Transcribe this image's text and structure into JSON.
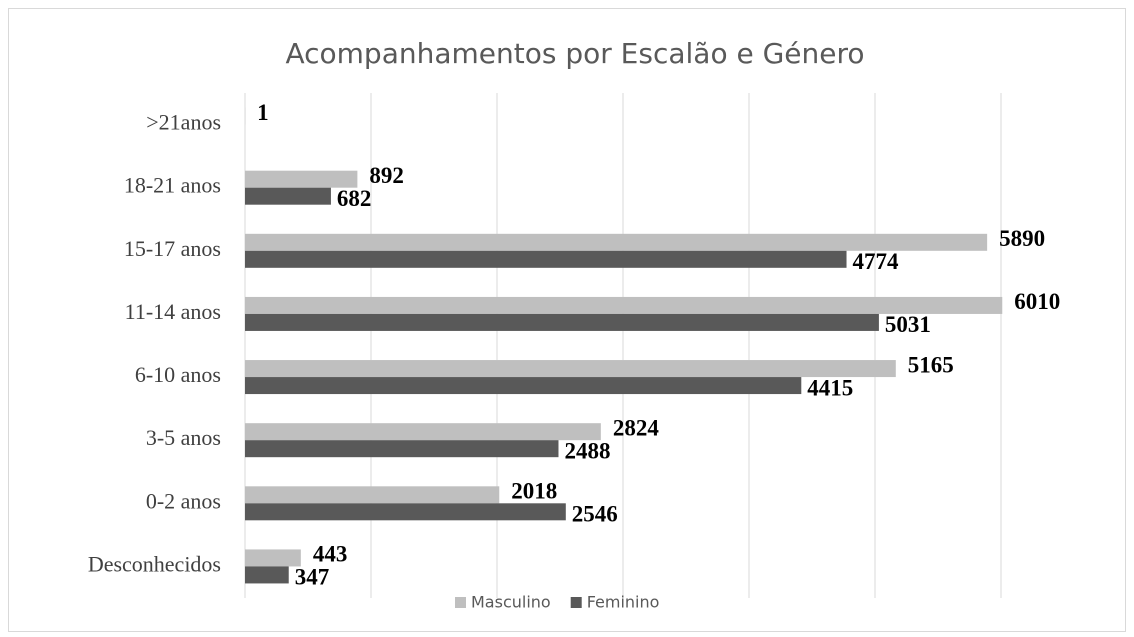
{
  "chart_data": {
    "type": "bar",
    "orientation": "horizontal",
    "title": "Acompanhamentos por Escalão e Género",
    "categories": [
      ">21anos",
      "18-21 anos",
      "15-17 anos",
      "11-14 anos",
      "6-10 anos",
      "3-5 anos",
      "0-2 anos",
      "Desconhecidos"
    ],
    "series": [
      {
        "name": "Masculino",
        "color": "#bfbfbf",
        "values": [
          1,
          892,
          5890,
          6010,
          5165,
          2824,
          2018,
          443
        ]
      },
      {
        "name": "Feminino",
        "color": "#595959",
        "values": [
          null,
          682,
          4774,
          5031,
          4415,
          2488,
          2546,
          347
        ]
      }
    ],
    "xlim": [
      0,
      6000
    ],
    "xticks": [
      0,
      1000,
      2000,
      3000,
      4000,
      5000,
      6000
    ],
    "grid": true,
    "legend": "bottom"
  }
}
